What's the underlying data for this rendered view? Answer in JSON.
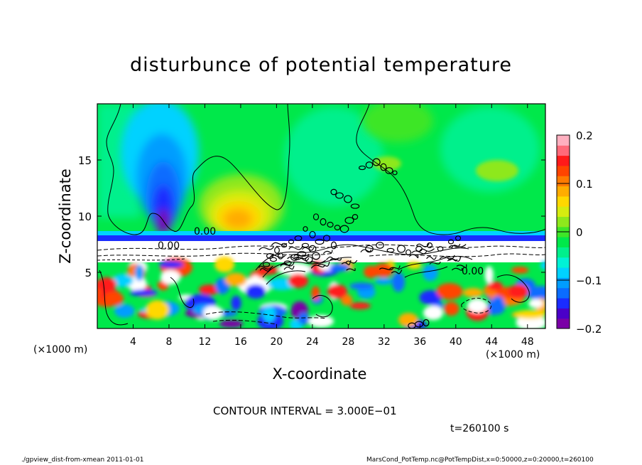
{
  "chart_data": {
    "type": "heatmap",
    "title": "disturbunce of potential temperature",
    "xlabel": "X-coordinate",
    "ylabel": "Z-coordinate",
    "x_unit": "(×1000 m)",
    "y_unit": "(×1000 m)",
    "xlim": [
      0,
      50
    ],
    "ylim": [
      0,
      20
    ],
    "x_ticks": [
      4,
      8,
      12,
      16,
      20,
      24,
      28,
      32,
      36,
      40,
      44,
      48
    ],
    "y_ticks": [
      5,
      10,
      15
    ],
    "colorbar": {
      "range": [
        -0.2,
        0.2
      ],
      "ticks": [
        "0.2",
        "0.1",
        "0",
        "−0.1",
        "−0.2"
      ],
      "tick_values": [
        0.2,
        0.1,
        0,
        -0.1,
        -0.2
      ],
      "colors": [
        "#7a00a6",
        "#4a00c8",
        "#1a2cff",
        "#0a6cff",
        "#009dff",
        "#00d2ff",
        "#00f2d6",
        "#00f08c",
        "#00e84a",
        "#3ee628",
        "#8ee81c",
        "#d6ec10",
        "#ffd800",
        "#ffac00",
        "#ff7a00",
        "#ff4400",
        "#ff1a1a",
        "#ff6a7a",
        "#ffb0c0"
      ]
    },
    "contour_labels": [
      "0.00",
      "0.00",
      "0.00"
    ],
    "contour_interval_text": "CONTOUR INTERVAL = 3.000E−01",
    "time_text": "t=260100 s"
  },
  "footer": {
    "left": "./gpview_dist-from-xmean   2011-01-01",
    "right": "MarsCond_PotTemp.nc@PotTempDist,x=0:50000,z=0:20000,t=260100"
  }
}
